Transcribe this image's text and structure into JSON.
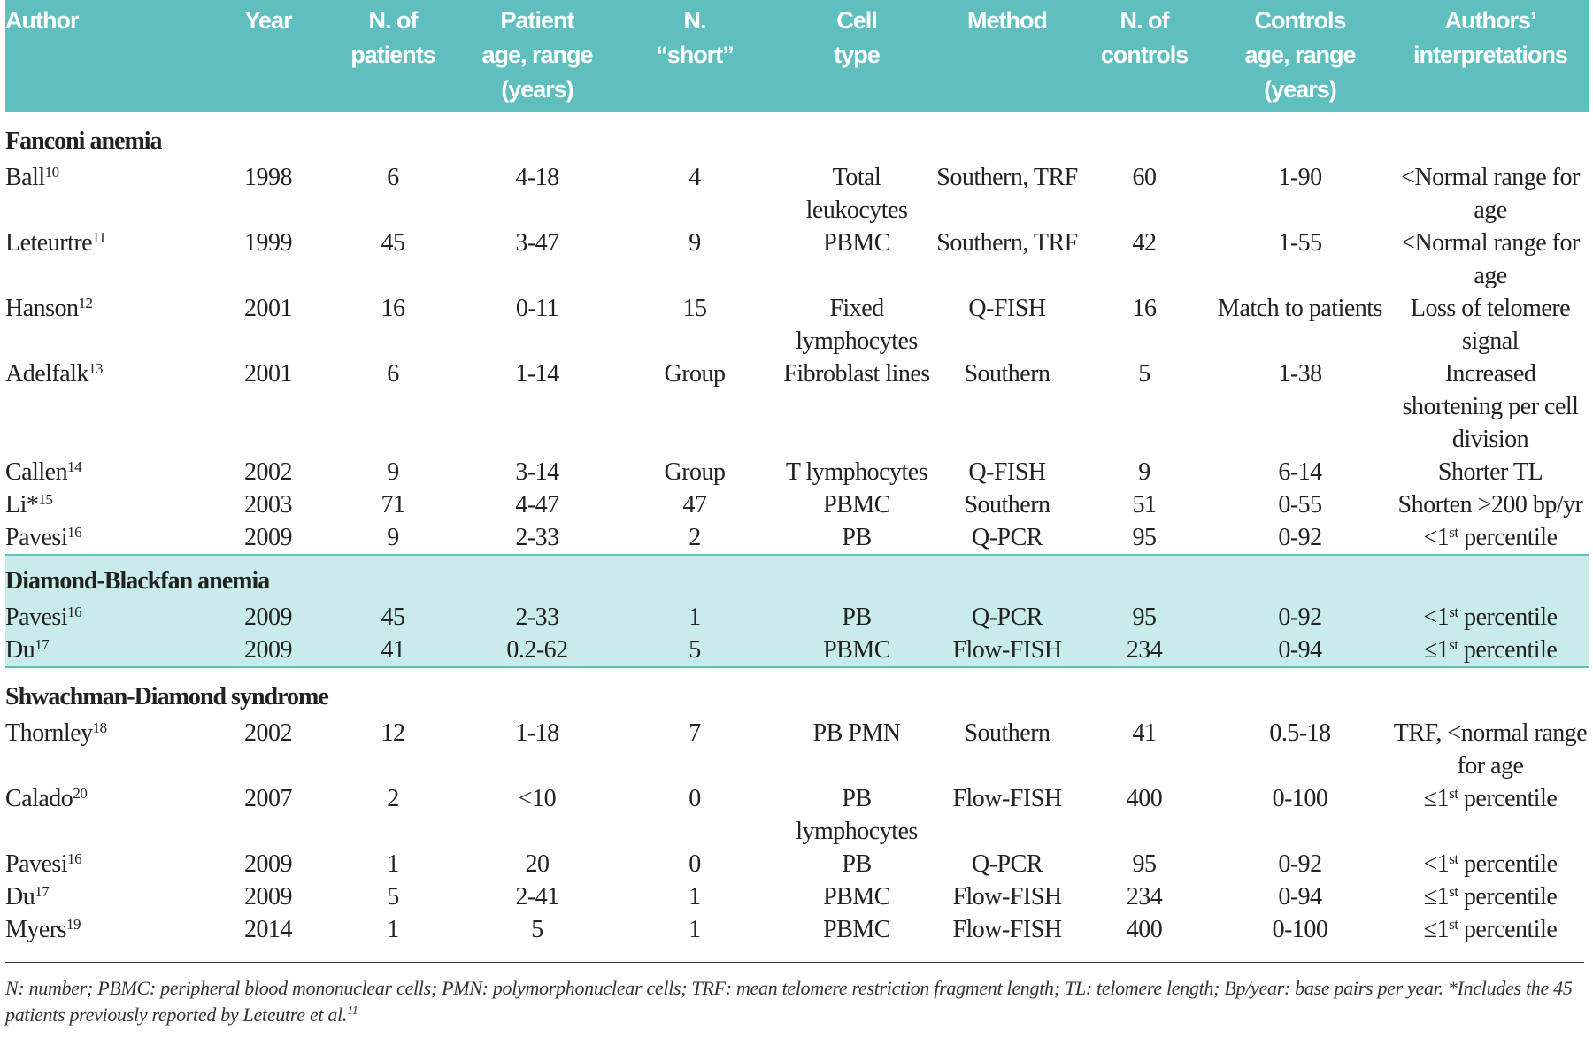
{
  "table": {
    "header": [
      [
        "Author"
      ],
      [
        "Year"
      ],
      [
        "N. of",
        "patients"
      ],
      [
        "Patient",
        "age, range",
        "(years)"
      ],
      [
        "N.",
        "“short”"
      ],
      [
        "Cell",
        "type"
      ],
      [
        "Method"
      ],
      [
        "N. of",
        "controls"
      ],
      [
        "Controls",
        "age, range",
        "(years)"
      ],
      [
        "Authors’",
        "interpretations"
      ]
    ],
    "sections": [
      {
        "title": "Fanconi anemia",
        "rows": [
          {
            "author": "Ball",
            "ref": "10",
            "cells": [
              1998,
              6,
              "4-18",
              4,
              "Total leukocytes",
              "Southern, TRF",
              60,
              "1-90",
              "<Normal range for age"
            ]
          },
          {
            "author": "Leteurtre",
            "ref": "11",
            "cells": [
              1999,
              45,
              "3-47",
              9,
              "PBMC",
              "Southern, TRF",
              42,
              "1-55",
              "<Normal range for age"
            ]
          },
          {
            "author": "Hanson",
            "ref": "12",
            "cells": [
              2001,
              16,
              "0-11",
              15,
              "Fixed lymphocytes",
              "Q-FISH",
              16,
              "Match to patients",
              "Loss of telomere signal"
            ]
          },
          {
            "author": "Adelfalk",
            "ref": "13",
            "cells": [
              2001,
              6,
              "1-14",
              "Group",
              "Fibroblast lines",
              "Southern",
              5,
              "1-38",
              "Increased shortening per cell division"
            ]
          },
          {
            "author": "Callen",
            "ref": "14",
            "cells": [
              2002,
              9,
              "3-14",
              "Group",
              "T lymphocytes",
              "Q-FISH",
              9,
              "6-14",
              "Shorter TL"
            ]
          },
          {
            "author": "Li*",
            "ref": "15",
            "cells": [
              2003,
              71,
              "4-47",
              47,
              "PBMC",
              "Southern",
              51,
              "0-55",
              "Shorten >200 bp/yr"
            ]
          },
          {
            "author": "Pavesi",
            "ref": "16",
            "cells": [
              2009,
              9,
              "2-33",
              2,
              "PB",
              "Q-PCR",
              95,
              "0-92",
              {
                "pre": "<1",
                "sup": "st",
                "post": " percentile"
              }
            ]
          }
        ]
      },
      {
        "title": "Diamond-Blackfan anemia",
        "shaded": true,
        "rows": [
          {
            "author": "Pavesi",
            "ref": "16",
            "cells": [
              2009,
              45,
              "2-33",
              1,
              "PB",
              "Q-PCR",
              95,
              "0-92",
              {
                "pre": "<1",
                "sup": "st",
                "post": " percentile"
              }
            ]
          },
          {
            "author": "Du",
            "ref": "17",
            "cells": [
              2009,
              41,
              "0.2-62",
              5,
              "PBMC",
              "Flow-FISH",
              234,
              "0-94",
              {
                "pre": "≤1",
                "sup": "st",
                "post": " percentile"
              }
            ]
          }
        ]
      },
      {
        "title": "Shwachman-Diamond syndrome",
        "rows": [
          {
            "author": "Thornley",
            "ref": "18",
            "cells": [
              2002,
              12,
              "1-18",
              7,
              "PB PMN",
              "Southern",
              41,
              "0.5-18",
              "TRF, <normal range for age"
            ]
          },
          {
            "author": "Calado",
            "ref": "20",
            "cells": [
              2007,
              2,
              "<10",
              0,
              "PB lymphocytes",
              "Flow-FISH",
              400,
              "0-100",
              {
                "pre": "≤1",
                "sup": "st",
                "post": " percentile"
              }
            ]
          },
          {
            "author": "Pavesi",
            "ref": "16",
            "cells": [
              2009,
              1,
              "20",
              0,
              "PB",
              "Q-PCR",
              95,
              "0-92",
              {
                "pre": "<1",
                "sup": "st",
                "post": " percentile"
              }
            ]
          },
          {
            "author": "Du",
            "ref": "17",
            "cells": [
              2009,
              5,
              "2-41",
              1,
              "PBMC",
              "Flow-FISH",
              234,
              "0-94",
              {
                "pre": "≤1",
                "sup": "st",
                "post": " percentile"
              }
            ]
          },
          {
            "author": "Myers",
            "ref": "19",
            "cells": [
              2014,
              1,
              "5",
              1,
              "PBMC",
              "Flow-FISH",
              400,
              "0-100",
              {
                "pre": "≤1",
                "sup": "st",
                "post": " percentile"
              }
            ]
          }
        ]
      }
    ]
  },
  "footnote": {
    "text": "N: number; PBMC: peripheral blood mononuclear cells; PMN: polymorphonuclear cells; TRF: mean telomere restriction fragment length; TL: telomere length; Bp/year: base pairs per year. *Includes the 45 patients previously reported by Leteutre et al.",
    "ref": "11"
  }
}
